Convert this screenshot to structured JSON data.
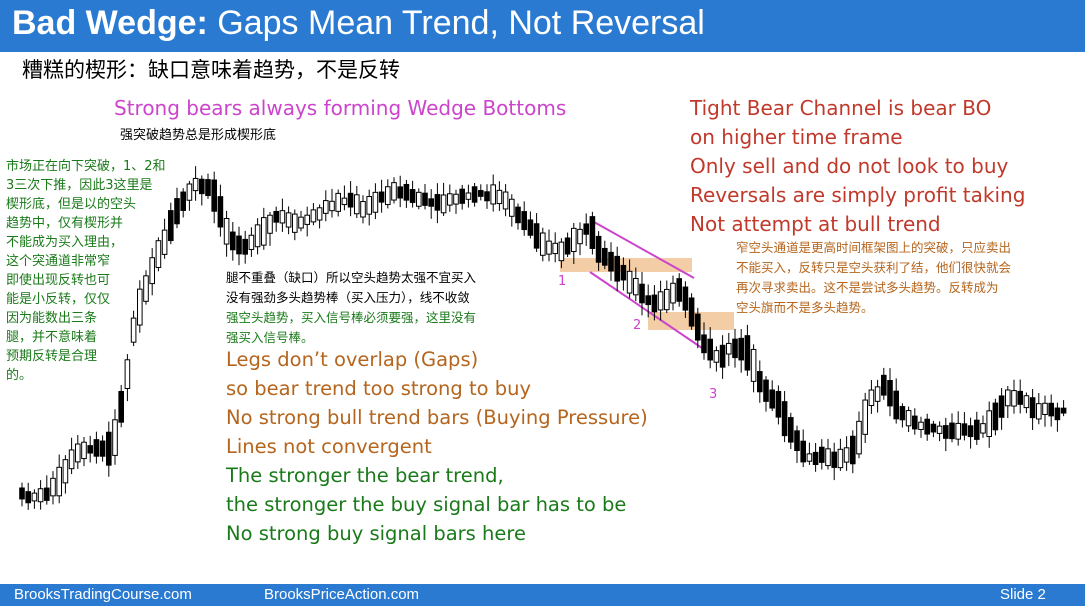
{
  "title": {
    "bold": "Bad Wedge:",
    "rest": " Gaps Mean Trend, Not Reversal"
  },
  "subtitle_zh": "糟糕的楔形：缺口意味着趋势，不是反转",
  "top_note": {
    "en": "Strong bears always forming Wedge Bottoms",
    "zh": "强突破趋势总是形成楔形底",
    "color": "#cc44cc"
  },
  "left_note_zh": [
    "市场正在向下突破，1、2和",
    "3三次下推，因此3这里是",
    "楔形底，但是以的空头",
    "趋势中，仅有楔形并",
    "不能成为买入理由，",
    "这个突通道非常窄",
    "即使出现反转也可",
    "能是小反转，仅仅",
    "因为能数出三条",
    "腿，并不意味着",
    "预期反转是合理",
    "的。"
  ],
  "middle_note_zh": {
    "black": [
      "腿不重叠（缺口）所以空头趋势太强不宜买入",
      "没有强劲多头趋势棒（买入压力），线不收敛"
    ],
    "green": [
      "强空头趋势，买入信号棒必须要强，这里没有",
      "强买入信号棒。"
    ]
  },
  "right_en": [
    "Tight Bear Channel is bear BO",
    "on higher time frame",
    "Only sell and do not look to buy",
    "Reversals are simply profit taking",
    "Not attempt at bull trend"
  ],
  "right_zh": [
    "窄空头通道是更高时间框架图上的突破，只应卖出",
    "不能买入，反转只是空头获利了结，他们很快就会",
    "再次寻求卖出。这不是尝试多头趋势。反转成为",
    "空头旗而不是多头趋势。"
  ],
  "bottom_en": {
    "orange": [
      "Legs don’t overlap (Gaps)",
      "so bear trend too strong to buy",
      "No strong bull trend bars (Buying Pressure)",
      "Lines not convergent"
    ],
    "green": [
      "The stronger the bear trend,",
      "the stronger the buy signal bar has to be",
      "No strong buy signal bars here"
    ]
  },
  "leg_labels": [
    "1",
    "2",
    "3"
  ],
  "footer": {
    "left": "BrooksTradingCourse.com",
    "center": "BrooksPriceAction.com",
    "right": "Slide  2"
  },
  "colors": {
    "accent_blue": "#2a7ad1",
    "red_text": "#c0392b",
    "orange_text": "#b5651d",
    "green_text": "#1a7a1a",
    "magenta": "#cc44cc",
    "gap_box": "#f0c090",
    "bull": "#ffffff",
    "bear": "#000000"
  }
}
